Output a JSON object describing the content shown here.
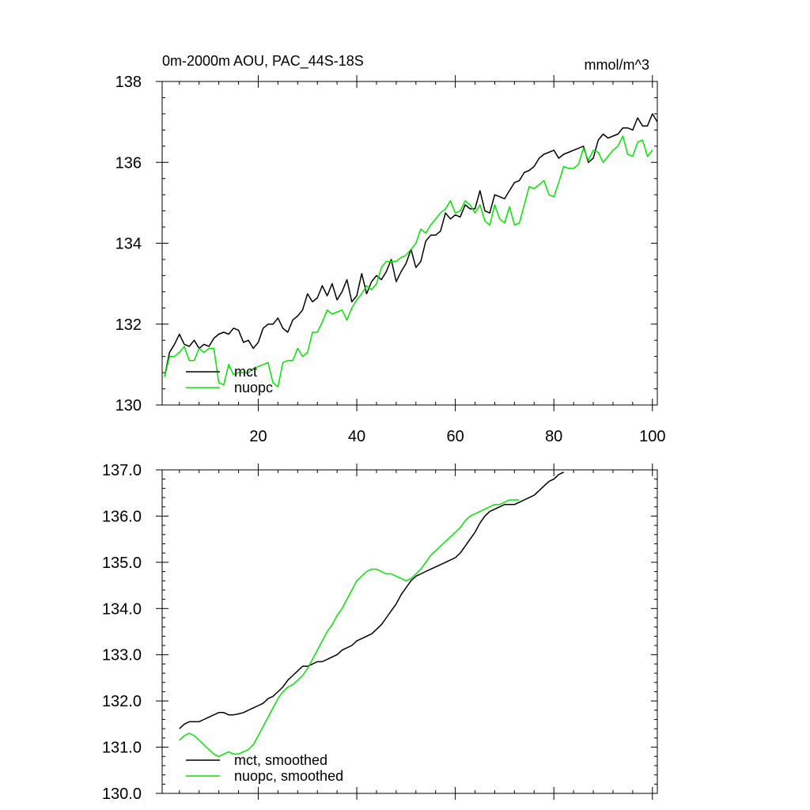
{
  "colors": {
    "mct": "#000000",
    "nuopc": "#00e600"
  },
  "chart_data": [
    {
      "type": "line",
      "title": "0m-2000m AOU, PAC_44S-18S",
      "units": "mmol/m^3",
      "xlim": [
        0.5,
        101
      ],
      "ylim": [
        130,
        138
      ],
      "xticks": [
        20,
        40,
        60,
        80,
        100
      ],
      "xtick_labels": [
        "20",
        "40",
        "60",
        "80",
        "100"
      ],
      "yticks": [
        130,
        132,
        134,
        136,
        138
      ],
      "ytick_labels": [
        "130",
        "132",
        "134",
        "136",
        "138"
      ],
      "legend_position": "bottom-left",
      "x_start": 1,
      "series": [
        {
          "name": "mct",
          "color": "#000000",
          "values": [
            130.7,
            131.3,
            131.5,
            131.75,
            131.5,
            131.45,
            131.6,
            131.4,
            131.5,
            131.45,
            131.65,
            131.75,
            131.8,
            131.75,
            131.9,
            131.85,
            131.55,
            131.6,
            131.4,
            131.55,
            131.9,
            132.0,
            132.0,
            132.15,
            131.9,
            131.8,
            132.1,
            132.2,
            132.35,
            132.75,
            132.55,
            132.65,
            132.95,
            132.7,
            133.0,
            132.6,
            132.8,
            133.1,
            132.55,
            132.7,
            133.25,
            132.75,
            133.05,
            133.2,
            133.1,
            133.3,
            133.6,
            133.05,
            133.3,
            133.5,
            133.85,
            133.4,
            133.55,
            134.05,
            134.2,
            134.2,
            134.3,
            134.75,
            134.6,
            134.7,
            134.65,
            134.95,
            134.85,
            134.85,
            135.3,
            134.8,
            134.75,
            135.2,
            135.15,
            135.1,
            135.3,
            135.5,
            135.55,
            135.75,
            135.8,
            135.9,
            136.1,
            136.2,
            136.25,
            136.3,
            136.1,
            136.2,
            136.25,
            136.3,
            136.35,
            136.4,
            136.0,
            136.1,
            136.55,
            136.7,
            136.6,
            136.65,
            136.7,
            136.85,
            136.85,
            136.8,
            137.1,
            136.9,
            136.9,
            137.2,
            137.0
          ]
        },
        {
          "name": "nuopc",
          "color": "#00e600",
          "values": [
            130.7,
            131.2,
            131.2,
            131.3,
            131.45,
            131.1,
            131.1,
            131.4,
            131.3,
            131.4,
            131.4,
            130.55,
            130.5,
            131.0,
            130.75,
            130.8,
            130.8,
            130.8,
            130.9,
            130.95,
            131.0,
            131.05,
            130.55,
            130.45,
            131.05,
            131.1,
            131.1,
            131.4,
            131.2,
            131.3,
            131.8,
            131.8,
            132.05,
            132.35,
            132.25,
            132.3,
            132.35,
            132.1,
            132.4,
            132.6,
            132.75,
            132.95,
            132.85,
            133.0,
            133.4,
            133.55,
            133.55,
            133.55,
            133.65,
            133.7,
            133.85,
            134.0,
            134.35,
            134.25,
            134.45,
            134.6,
            134.75,
            134.85,
            135.05,
            134.75,
            134.8,
            135.05,
            134.95,
            134.75,
            134.95,
            134.55,
            134.45,
            134.95,
            134.6,
            134.5,
            134.9,
            134.45,
            134.5,
            134.95,
            135.4,
            135.35,
            135.45,
            135.55,
            135.2,
            135.15,
            135.5,
            135.9,
            135.85,
            135.85,
            135.95,
            136.35,
            136.05,
            136.3,
            136.25,
            136.0,
            136.15,
            136.3,
            136.4,
            136.65,
            136.2,
            136.15,
            136.5,
            136.55,
            136.15,
            136.3
          ]
        }
      ]
    },
    {
      "type": "line",
      "xlim": [
        0.5,
        101
      ],
      "ylim": [
        130,
        137
      ],
      "xticks": [
        20,
        40,
        60,
        80,
        100
      ],
      "xtick_labels": [],
      "yticks": [
        130,
        131,
        132,
        133,
        134,
        135,
        136,
        137
      ],
      "ytick_labels": [
        "130.0",
        "131.0",
        "132.0",
        "133.0",
        "134.0",
        "135.0",
        "136.0",
        "137.0"
      ],
      "legend_position": "bottom-left",
      "x_start": 4,
      "series": [
        {
          "name": "mct, smoothed",
          "color": "#000000",
          "values": [
            131.4,
            131.5,
            131.55,
            131.55,
            131.55,
            131.6,
            131.65,
            131.7,
            131.75,
            131.75,
            131.7,
            131.7,
            131.72,
            131.75,
            131.8,
            131.85,
            131.9,
            131.95,
            132.05,
            132.1,
            132.2,
            132.3,
            132.45,
            132.55,
            132.65,
            132.75,
            132.75,
            132.8,
            132.85,
            132.85,
            132.9,
            132.95,
            133.0,
            133.1,
            133.15,
            133.2,
            133.3,
            133.35,
            133.4,
            133.45,
            133.55,
            133.65,
            133.8,
            133.95,
            134.1,
            134.3,
            134.45,
            134.6,
            134.7,
            134.75,
            134.8,
            134.85,
            134.9,
            134.95,
            135.0,
            135.05,
            135.1,
            135.2,
            135.35,
            135.5,
            135.65,
            135.85,
            136.0,
            136.1,
            136.15,
            136.2,
            136.25,
            136.25,
            136.25,
            136.3,
            136.35,
            136.4,
            136.45,
            136.55,
            136.65,
            136.75,
            136.8,
            136.9,
            136.95
          ]
        },
        {
          "name": "nuopc, smoothed",
          "color": "#00e600",
          "values": [
            131.15,
            131.25,
            131.3,
            131.25,
            131.15,
            131.05,
            130.95,
            130.85,
            130.8,
            130.85,
            130.9,
            130.85,
            130.85,
            130.9,
            130.95,
            131.05,
            131.25,
            131.45,
            131.65,
            131.85,
            132.05,
            132.2,
            132.3,
            132.35,
            132.45,
            132.55,
            132.7,
            132.9,
            133.1,
            133.3,
            133.5,
            133.65,
            133.85,
            134.0,
            134.2,
            134.4,
            134.6,
            134.7,
            134.8,
            134.85,
            134.85,
            134.8,
            134.75,
            134.75,
            134.7,
            134.65,
            134.6,
            134.65,
            134.75,
            134.85,
            135.0,
            135.15,
            135.25,
            135.35,
            135.45,
            135.55,
            135.65,
            135.75,
            135.9,
            136.0,
            136.05,
            136.1,
            136.15,
            136.2,
            136.25,
            136.25,
            136.3,
            136.35,
            136.35,
            136.35
          ]
        }
      ]
    }
  ]
}
